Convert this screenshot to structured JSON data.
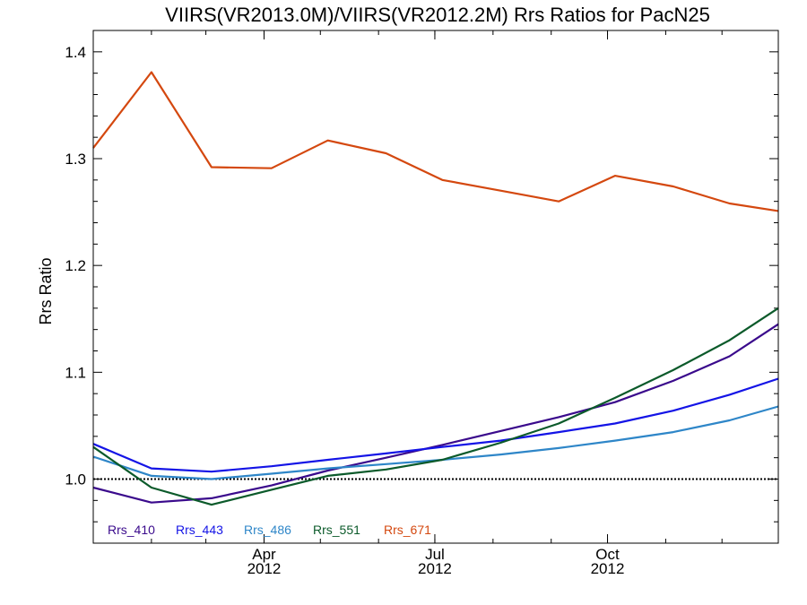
{
  "chart_data": {
    "type": "line",
    "title": "VIIRS(VR2013.0M)/VIIRS(VR2012.2M)  Rrs Ratios for PacN25",
    "ylabel": "Rrs Ratio",
    "xlabel": "",
    "ylim": [
      0.94,
      1.42
    ],
    "xlim": [
      "2012-01-01",
      "2012-12-31"
    ],
    "yticks": [
      {
        "value": 1.0,
        "label": "1.0"
      },
      {
        "value": 1.1,
        "label": "1.1"
      },
      {
        "value": 1.2,
        "label": "1.2"
      },
      {
        "value": 1.3,
        "label": "1.3"
      },
      {
        "value": 1.4,
        "label": "1.4"
      }
    ],
    "xticks": [
      {
        "date": "2012-04-01",
        "label": "Apr",
        "year": "2012"
      },
      {
        "date": "2012-07-01",
        "label": "Jul",
        "year": "2012"
      },
      {
        "date": "2012-10-01",
        "label": "Oct",
        "year": "2012"
      }
    ],
    "reference_line": 1.0,
    "series": [
      {
        "name": "Rrs_410",
        "color": "#3a0a8c",
        "points": [
          {
            "x": "2012-01-01",
            "y": 0.992
          },
          {
            "x": "2012-02-01",
            "y": 0.978
          },
          {
            "x": "2012-03-04",
            "y": 0.982
          },
          {
            "x": "2012-04-05",
            "y": 0.994
          },
          {
            "x": "2012-05-05",
            "y": 1.008
          },
          {
            "x": "2012-06-05",
            "y": 1.02
          },
          {
            "x": "2012-07-05",
            "y": 1.032
          },
          {
            "x": "2012-08-05",
            "y": 1.045
          },
          {
            "x": "2012-09-05",
            "y": 1.058
          },
          {
            "x": "2012-10-05",
            "y": 1.072
          },
          {
            "x": "2012-11-05",
            "y": 1.092
          },
          {
            "x": "2012-12-05",
            "y": 1.115
          },
          {
            "x": "2012-12-31",
            "y": 1.145
          }
        ]
      },
      {
        "name": "Rrs_443",
        "color": "#1414e6",
        "points": [
          {
            "x": "2012-01-01",
            "y": 1.033
          },
          {
            "x": "2012-02-01",
            "y": 1.01
          },
          {
            "x": "2012-03-04",
            "y": 1.007
          },
          {
            "x": "2012-04-05",
            "y": 1.012
          },
          {
            "x": "2012-05-05",
            "y": 1.018
          },
          {
            "x": "2012-06-05",
            "y": 1.024
          },
          {
            "x": "2012-07-05",
            "y": 1.03
          },
          {
            "x": "2012-08-05",
            "y": 1.036
          },
          {
            "x": "2012-09-05",
            "y": 1.044
          },
          {
            "x": "2012-10-05",
            "y": 1.052
          },
          {
            "x": "2012-11-05",
            "y": 1.064
          },
          {
            "x": "2012-12-05",
            "y": 1.079
          },
          {
            "x": "2012-12-31",
            "y": 1.094
          }
        ]
      },
      {
        "name": "Rrs_486",
        "color": "#2e86c8",
        "points": [
          {
            "x": "2012-01-01",
            "y": 1.021
          },
          {
            "x": "2012-02-01",
            "y": 1.003
          },
          {
            "x": "2012-03-04",
            "y": 1.0
          },
          {
            "x": "2012-04-05",
            "y": 1.005
          },
          {
            "x": "2012-05-05",
            "y": 1.01
          },
          {
            "x": "2012-06-05",
            "y": 1.014
          },
          {
            "x": "2012-07-05",
            "y": 1.018
          },
          {
            "x": "2012-08-05",
            "y": 1.023
          },
          {
            "x": "2012-09-05",
            "y": 1.029
          },
          {
            "x": "2012-10-05",
            "y": 1.036
          },
          {
            "x": "2012-11-05",
            "y": 1.044
          },
          {
            "x": "2012-12-05",
            "y": 1.055
          },
          {
            "x": "2012-12-31",
            "y": 1.068
          }
        ]
      },
      {
        "name": "Rrs_551",
        "color": "#0b5a2a",
        "points": [
          {
            "x": "2012-01-01",
            "y": 1.03
          },
          {
            "x": "2012-02-01",
            "y": 0.992
          },
          {
            "x": "2012-03-04",
            "y": 0.976
          },
          {
            "x": "2012-04-05",
            "y": 0.99
          },
          {
            "x": "2012-05-05",
            "y": 1.003
          },
          {
            "x": "2012-06-05",
            "y": 1.009
          },
          {
            "x": "2012-07-05",
            "y": 1.018
          },
          {
            "x": "2012-08-05",
            "y": 1.034
          },
          {
            "x": "2012-09-05",
            "y": 1.052
          },
          {
            "x": "2012-10-05",
            "y": 1.076
          },
          {
            "x": "2012-11-05",
            "y": 1.102
          },
          {
            "x": "2012-12-05",
            "y": 1.13
          },
          {
            "x": "2012-12-31",
            "y": 1.16
          }
        ]
      },
      {
        "name": "Rrs_671",
        "color": "#d4480f",
        "points": [
          {
            "x": "2012-01-01",
            "y": 1.31
          },
          {
            "x": "2012-02-01",
            "y": 1.381
          },
          {
            "x": "2012-03-04",
            "y": 1.292
          },
          {
            "x": "2012-04-05",
            "y": 1.291
          },
          {
            "x": "2012-05-05",
            "y": 1.317
          },
          {
            "x": "2012-06-05",
            "y": 1.305
          },
          {
            "x": "2012-07-05",
            "y": 1.28
          },
          {
            "x": "2012-08-05",
            "y": 1.27
          },
          {
            "x": "2012-09-05",
            "y": 1.26
          },
          {
            "x": "2012-10-05",
            "y": 1.284
          },
          {
            "x": "2012-11-05",
            "y": 1.274
          },
          {
            "x": "2012-12-05",
            "y": 1.258
          },
          {
            "x": "2012-12-31",
            "y": 1.251
          }
        ]
      }
    ],
    "legend": {
      "position": "bottom-left",
      "orientation": "horizontal"
    },
    "grid": false
  }
}
